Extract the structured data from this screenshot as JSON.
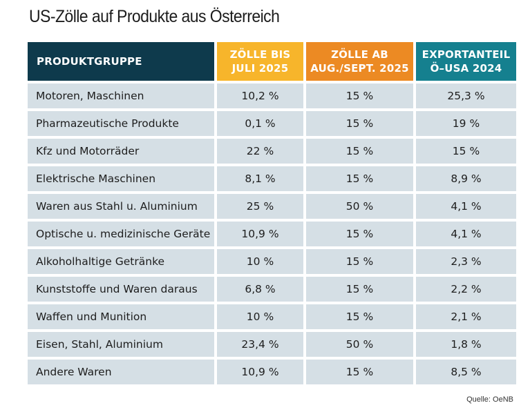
{
  "title": "US-Zölle auf Produkte aus Österreich",
  "source": "Quelle: OeNB",
  "colors": {
    "header_group": "#0e3a4c",
    "header_bis": "#f7b52b",
    "header_ab": "#ec8a23",
    "header_export": "#15808f",
    "row_bg": "#d5dfe5"
  },
  "chart_data": {
    "type": "table",
    "title": "US-Zölle auf Produkte aus Österreich",
    "columns": [
      {
        "line1": "PRODUKTGRUPPE",
        "line2": ""
      },
      {
        "line1": "ZÖLLE BIS",
        "line2": "JULI 2025"
      },
      {
        "line1": "ZÖLLE AB",
        "line2": "AUG./SEPT. 2025"
      },
      {
        "line1": "EXPORTANTEIL",
        "line2": "Ö–USA 2024"
      }
    ],
    "rows": [
      [
        "Motoren, Maschinen",
        "10,2 %",
        "15 %",
        "25,3 %"
      ],
      [
        "Pharmazeutische Produkte",
        "0,1 %",
        "15 %",
        "19 %"
      ],
      [
        "Kfz und Motorräder",
        "22 %",
        "15 %",
        "15 %"
      ],
      [
        "Elektrische Maschinen",
        "8,1 %",
        "15 %",
        "8,9 %"
      ],
      [
        "Waren aus Stahl u. Aluminium",
        "25 %",
        "50 %",
        "4,1 %"
      ],
      [
        "Optische u. medizinische Geräte",
        "10,9 %",
        "15 %",
        "4,1 %"
      ],
      [
        "Alkoholhaltige Getränke",
        "10 %",
        "15 %",
        "2,3 %"
      ],
      [
        "Kunststoffe und Waren daraus",
        "6,8 %",
        "15 %",
        "2,2 %"
      ],
      [
        "Waffen und Munition",
        "10 %",
        "15 %",
        "2,1 %"
      ],
      [
        "Eisen, Stahl, Aluminium",
        "23,4 %",
        "50 %",
        "1,8 %"
      ],
      [
        "Andere Waren",
        "10,9 %",
        "15 %",
        "8,5 %"
      ]
    ]
  }
}
